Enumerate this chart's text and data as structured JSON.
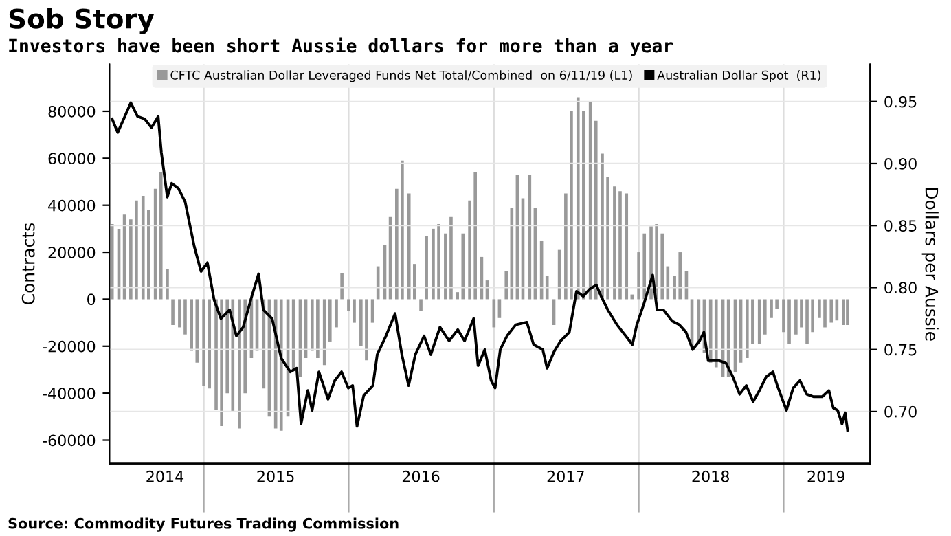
{
  "chart_data": {
    "type": "bar",
    "title": "Sob Story",
    "subtitle": "Investors have been short Aussie dollars for more than a year",
    "ylabel": "Contracts",
    "y2label": "Dollars per Aussie",
    "annotations": [
      "Source: Commodity Futures Trading Commission"
    ],
    "legend": "top",
    "grid": true,
    "xlim": [
      "2014-05-08",
      "2019-08-07"
    ],
    "xticks": [
      {
        "value": "2014-09-25",
        "label": "2014"
      },
      {
        "value": "2015-01-01",
        "label": null
      },
      {
        "value": "2015-07-01",
        "label": "2015"
      },
      {
        "value": "2016-01-01",
        "label": null
      },
      {
        "value": "2016-07-01",
        "label": "2016"
      },
      {
        "value": "2017-01-01",
        "label": null
      },
      {
        "value": "2017-07-01",
        "label": "2017"
      },
      {
        "value": "2018-01-01",
        "label": null
      },
      {
        "value": "2018-07-01",
        "label": "2018"
      },
      {
        "value": "2019-01-01",
        "label": null
      },
      {
        "value": "2019-04-18",
        "label": "2019"
      }
    ],
    "ylim": [
      -70000,
      100000
    ],
    "yticks": [
      -60000,
      -40000,
      -20000,
      0,
      20000,
      40000,
      60000,
      80000
    ],
    "y2lim": [
      0.658,
      0.98
    ],
    "y2ticks": [
      {
        "value": 0.7,
        "label": "0.70"
      },
      {
        "value": 0.75,
        "label": "0.75"
      },
      {
        "value": 0.8,
        "label": "0.80"
      },
      {
        "value": 0.85,
        "label": "0.85"
      },
      {
        "value": 0.9,
        "label": "0.90"
      },
      {
        "value": 0.95,
        "label": "0.95"
      }
    ],
    "series": [
      {
        "name": "CFTC Australian Dollar Leveraged Funds Net Total/Combined  on 6/11/19 (L1)",
        "color": "#999999",
        "x": [
          "2014-05-15",
          "2014-06-01",
          "2014-06-15",
          "2014-07-01",
          "2014-07-15",
          "2014-08-01",
          "2014-08-15",
          "2014-09-01",
          "2014-09-15",
          "2014-10-01",
          "2014-10-15",
          "2014-11-01",
          "2014-11-15",
          "2014-12-01",
          "2014-12-15",
          "2015-01-01",
          "2015-01-15",
          "2015-02-01",
          "2015-02-15",
          "2015-03-01",
          "2015-03-15",
          "2015-04-01",
          "2015-04-15",
          "2015-05-01",
          "2015-05-15",
          "2015-06-01",
          "2015-06-15",
          "2015-07-01",
          "2015-07-15",
          "2015-08-01",
          "2015-08-15",
          "2015-09-01",
          "2015-09-15",
          "2015-10-01",
          "2015-10-15",
          "2015-11-01",
          "2015-11-15",
          "2015-12-01",
          "2015-12-15",
          "2016-01-01",
          "2016-01-15",
          "2016-02-01",
          "2016-02-15",
          "2016-03-01",
          "2016-03-15",
          "2016-04-01",
          "2016-04-15",
          "2016-05-01",
          "2016-05-15",
          "2016-06-01",
          "2016-06-15",
          "2016-07-01",
          "2016-07-15",
          "2016-08-01",
          "2016-08-15",
          "2016-09-01",
          "2016-09-15",
          "2016-10-01",
          "2016-10-15",
          "2016-11-01",
          "2016-11-15",
          "2016-12-01",
          "2016-12-15",
          "2017-01-01",
          "2017-01-15",
          "2017-02-01",
          "2017-02-15",
          "2017-03-01",
          "2017-03-15",
          "2017-04-01",
          "2017-04-15",
          "2017-05-01",
          "2017-05-15",
          "2017-06-01",
          "2017-06-15",
          "2017-07-01",
          "2017-07-15",
          "2017-08-01",
          "2017-08-15",
          "2017-09-01",
          "2017-09-15",
          "2017-10-01",
          "2017-10-15",
          "2017-11-01",
          "2017-11-15",
          "2017-12-01",
          "2017-12-15",
          "2018-01-01",
          "2018-01-15",
          "2018-02-01",
          "2018-02-15",
          "2018-03-01",
          "2018-03-15",
          "2018-04-01",
          "2018-04-15",
          "2018-05-01",
          "2018-05-15",
          "2018-06-01",
          "2018-06-15",
          "2018-07-01",
          "2018-07-15",
          "2018-08-01",
          "2018-08-15",
          "2018-09-01",
          "2018-09-15",
          "2018-10-01",
          "2018-10-15",
          "2018-11-01",
          "2018-11-15",
          "2018-12-01",
          "2018-12-15",
          "2019-01-01",
          "2019-01-15",
          "2019-02-01",
          "2019-02-15",
          "2019-03-01",
          "2019-03-15",
          "2019-04-01",
          "2019-04-15",
          "2019-05-01",
          "2019-05-15",
          "2019-06-01",
          "2019-06-11"
        ],
        "values": [
          32000,
          30000,
          36000,
          34000,
          42000,
          44000,
          38000,
          47000,
          54000,
          13000,
          -11000,
          -12000,
          -15000,
          -22000,
          -27000,
          -37000,
          -38000,
          -47000,
          -54000,
          -40000,
          -48000,
          -55000,
          -40000,
          -25000,
          -22000,
          -38000,
          -50000,
          -55000,
          -56000,
          -50000,
          -30000,
          -33000,
          -25000,
          -22000,
          -25000,
          -28000,
          -18000,
          -12000,
          11000,
          -5000,
          -10000,
          -20000,
          -26000,
          -10000,
          14000,
          23000,
          35000,
          47000,
          59000,
          45000,
          15000,
          -5000,
          27000,
          30000,
          32000,
          28000,
          35000,
          3000,
          28000,
          42000,
          54000,
          18000,
          8000,
          -12000,
          -8000,
          12000,
          39000,
          53000,
          43000,
          53000,
          39000,
          25000,
          10000,
          -11000,
          21000,
          45000,
          80000,
          86000,
          80000,
          84000,
          76000,
          62000,
          52000,
          48000,
          46000,
          45000,
          2000,
          20000,
          28000,
          31000,
          32000,
          28000,
          14000,
          10000,
          20000,
          12000,
          -20000,
          -19000,
          -23000,
          -27000,
          -29000,
          -33000,
          -33000,
          -31000,
          -27000,
          -25000,
          -19000,
          -19000,
          -15000,
          -8000,
          -4000,
          -14000,
          -19000,
          -15000,
          -12000,
          -19000,
          -14000,
          -8000,
          -12000,
          -10000,
          -9000,
          -11000,
          -11000
        ]
      },
      {
        "name": "Australian Dollar Spot  (R1)",
        "type": "line",
        "axis": "y2",
        "color": "#000000",
        "x": [
          "2014-05-15",
          "2014-05-29",
          "2014-06-16",
          "2014-07-01",
          "2014-07-18",
          "2014-08-05",
          "2014-08-22",
          "2014-09-08",
          "2014-09-16",
          "2014-10-01",
          "2014-10-12",
          "2014-10-29",
          "2014-11-15",
          "2014-12-08",
          "2014-12-25",
          "2015-01-10",
          "2015-01-27",
          "2015-02-13",
          "2015-03-07",
          "2015-03-24",
          "2015-04-10",
          "2015-05-02",
          "2015-05-19",
          "2015-05-31",
          "2015-06-22",
          "2015-07-15",
          "2015-08-07",
          "2015-08-23",
          "2015-09-03",
          "2015-09-20",
          "2015-10-01",
          "2015-10-18",
          "2015-11-10",
          "2015-11-27",
          "2015-12-14",
          "2015-12-31",
          "2016-01-11",
          "2016-01-22",
          "2016-02-08",
          "2016-03-02",
          "2016-03-13",
          "2016-04-04",
          "2016-04-27",
          "2016-05-14",
          "2016-05-31",
          "2016-06-17",
          "2016-07-09",
          "2016-07-26",
          "2016-08-18",
          "2016-09-10",
          "2016-10-02",
          "2016-10-19",
          "2016-11-11",
          "2016-11-22",
          "2016-12-09",
          "2016-12-25",
          "2017-01-04",
          "2017-01-17",
          "2017-02-03",
          "2017-02-25",
          "2017-03-25",
          "2017-04-11",
          "2017-05-04",
          "2017-05-15",
          "2017-06-01",
          "2017-06-18",
          "2017-07-10",
          "2017-07-28",
          "2017-08-14",
          "2017-08-31",
          "2017-09-16",
          "2017-09-28",
          "2017-10-15",
          "2017-11-07",
          "2017-11-29",
          "2017-12-16",
          "2017-12-27",
          "2018-01-13",
          "2018-02-05",
          "2018-02-16",
          "2018-03-04",
          "2018-03-26",
          "2018-04-13",
          "2018-04-30",
          "2018-05-17",
          "2018-06-03",
          "2018-06-14",
          "2018-06-25",
          "2018-07-23",
          "2018-08-09",
          "2018-08-26",
          "2018-09-12",
          "2018-09-29",
          "2018-10-16",
          "2018-11-01",
          "2018-11-18",
          "2018-12-05",
          "2018-12-16",
          "2019-01-08",
          "2019-01-25",
          "2019-02-11",
          "2019-02-28",
          "2019-03-17",
          "2019-04-08",
          "2019-04-25",
          "2019-05-06",
          "2019-05-17",
          "2019-05-28",
          "2019-06-05",
          "2019-06-11"
        ],
        "values": [
          0.936,
          0.925,
          0.938,
          0.949,
          0.938,
          0.936,
          0.929,
          0.938,
          0.909,
          0.873,
          0.884,
          0.88,
          0.869,
          0.833,
          0.813,
          0.82,
          0.79,
          0.775,
          0.782,
          0.761,
          0.768,
          0.793,
          0.811,
          0.782,
          0.775,
          0.743,
          0.732,
          0.735,
          0.69,
          0.717,
          0.701,
          0.732,
          0.71,
          0.725,
          0.732,
          0.719,
          0.721,
          0.688,
          0.713,
          0.721,
          0.746,
          0.761,
          0.779,
          0.746,
          0.721,
          0.746,
          0.761,
          0.746,
          0.768,
          0.757,
          0.766,
          0.757,
          0.775,
          0.737,
          0.75,
          0.725,
          0.719,
          0.75,
          0.761,
          0.77,
          0.772,
          0.754,
          0.75,
          0.735,
          0.748,
          0.757,
          0.764,
          0.797,
          0.793,
          0.799,
          0.802,
          0.793,
          0.782,
          0.77,
          0.761,
          0.754,
          0.77,
          0.786,
          0.81,
          0.782,
          0.782,
          0.773,
          0.77,
          0.764,
          0.75,
          0.757,
          0.764,
          0.741,
          0.741,
          0.739,
          0.728,
          0.714,
          0.721,
          0.708,
          0.717,
          0.728,
          0.732,
          0.721,
          0.701,
          0.719,
          0.725,
          0.714,
          0.712,
          0.712,
          0.717,
          0.703,
          0.701,
          0.69,
          0.699,
          0.685
        ]
      }
    ]
  }
}
